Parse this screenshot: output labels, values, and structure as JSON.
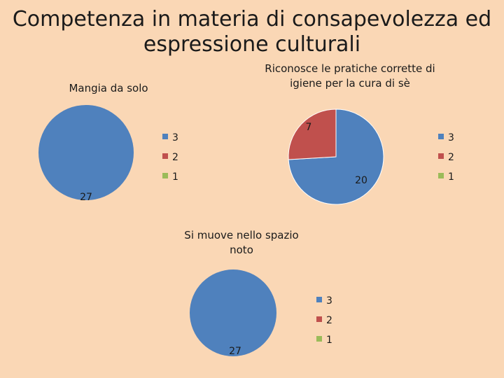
{
  "title": "Competenza in materia di consapevolezza ed espressione culturali",
  "colors": {
    "background": "#FAD7B5",
    "series": [
      "#4F81BD",
      "#C0504D",
      "#9BBB59"
    ]
  },
  "chart_data": [
    {
      "type": "pie",
      "title": "Mangia da solo",
      "categories": [
        "3",
        "2",
        "1"
      ],
      "values": [
        27,
        0,
        0
      ],
      "data_labels": [
        "27",
        "",
        ""
      ],
      "legend": "right"
    },
    {
      "type": "pie",
      "title": "Riconosce le pratiche corrette di igiene per la cura di sè",
      "categories": [
        "3",
        "2",
        "1"
      ],
      "values": [
        20,
        7,
        0
      ],
      "data_labels": [
        "20",
        "7",
        ""
      ],
      "legend": "right"
    },
    {
      "type": "pie",
      "title": "Si muove nello spazio noto",
      "categories": [
        "3",
        "2",
        "1"
      ],
      "values": [
        27,
        0,
        0
      ],
      "data_labels": [
        "27",
        "",
        ""
      ],
      "legend": "right"
    }
  ]
}
